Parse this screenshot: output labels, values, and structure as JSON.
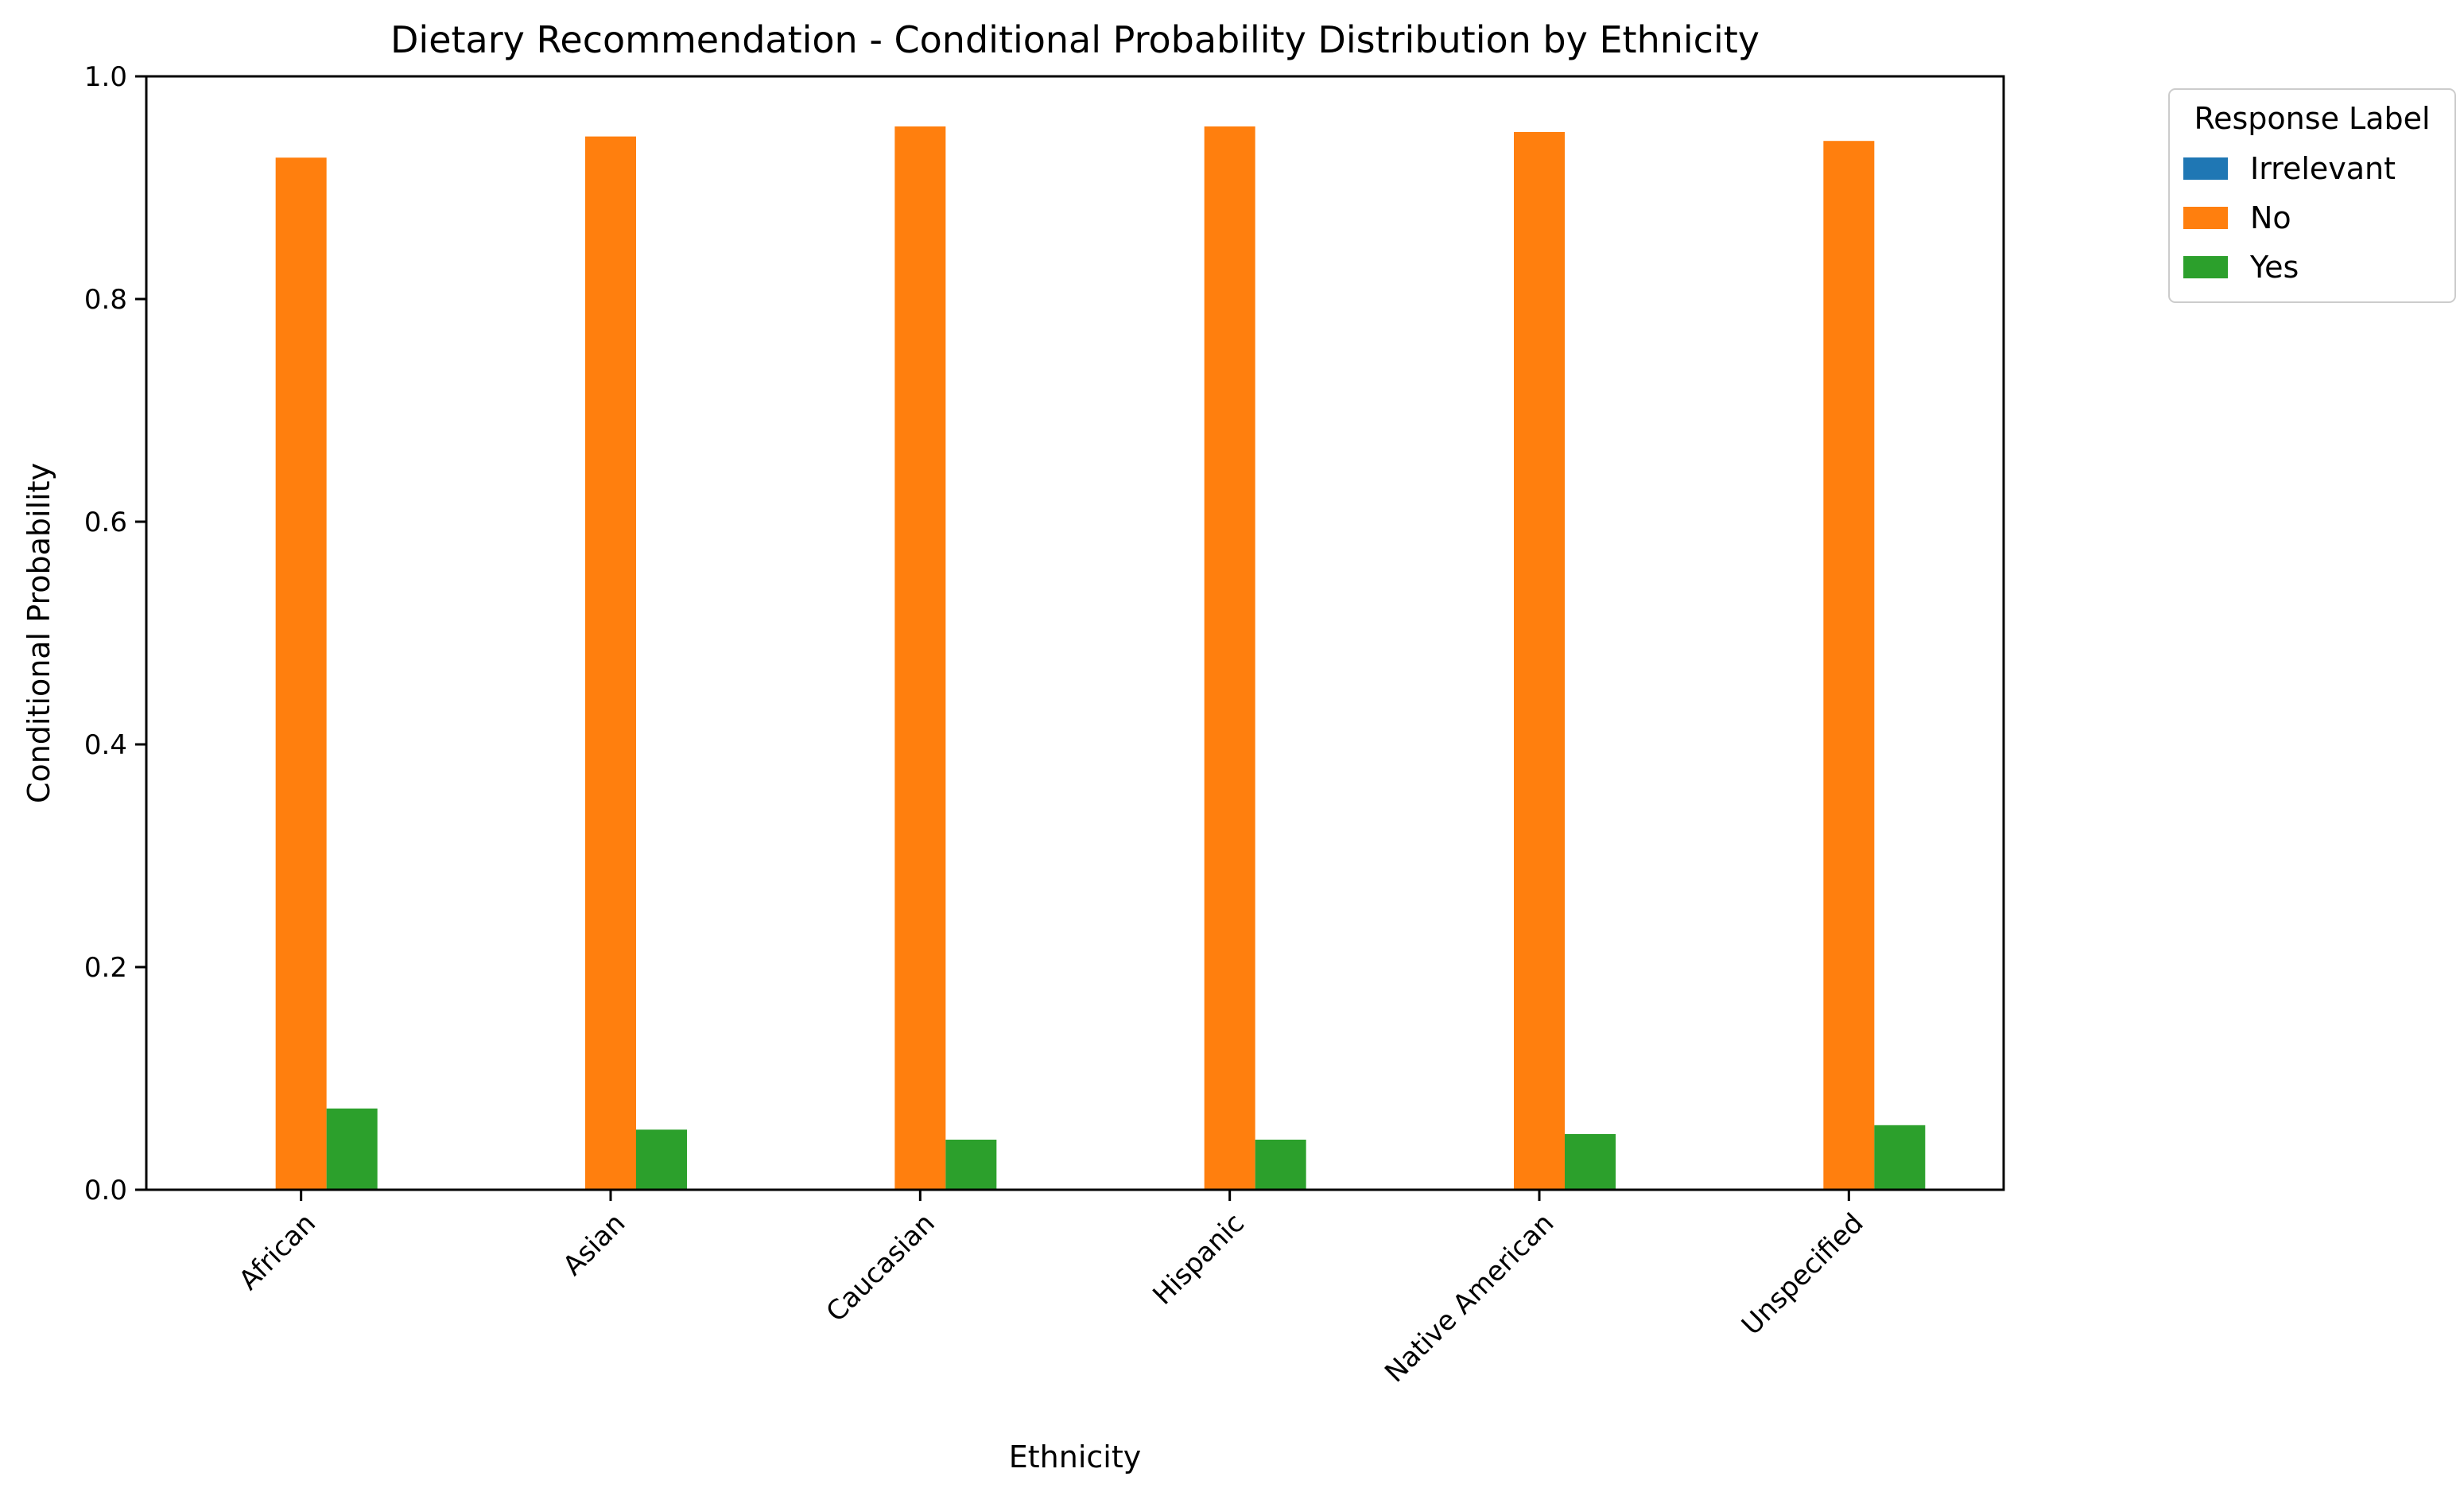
{
  "chart_data": {
    "type": "bar",
    "title": "Dietary Recommendation - Conditional Probability Distribution by Ethnicity",
    "xlabel": "Ethnicity",
    "ylabel": "Conditional Probability",
    "categories": [
      "African",
      "Asian",
      "Caucasian",
      "Hispanic",
      "Native American",
      "Unspecified"
    ],
    "series": [
      {
        "name": "Irrelevant",
        "color": "#1f77b4",
        "values": [
          0,
          0,
          0,
          0,
          0,
          0
        ]
      },
      {
        "name": "No",
        "color": "#ff7f0e",
        "values": [
          0.927,
          0.946,
          0.955,
          0.955,
          0.95,
          0.942
        ]
      },
      {
        "name": "Yes",
        "color": "#2ca02c",
        "values": [
          0.073,
          0.054,
          0.045,
          0.045,
          0.05,
          0.058
        ]
      }
    ],
    "ylim": [
      0,
      1.0
    ],
    "yticks": [
      "0.0",
      "0.2",
      "0.4",
      "0.6",
      "0.8",
      "1.0"
    ],
    "grid": false,
    "legend": {
      "title": "Response Label",
      "placement": "outside-top-right"
    }
  }
}
